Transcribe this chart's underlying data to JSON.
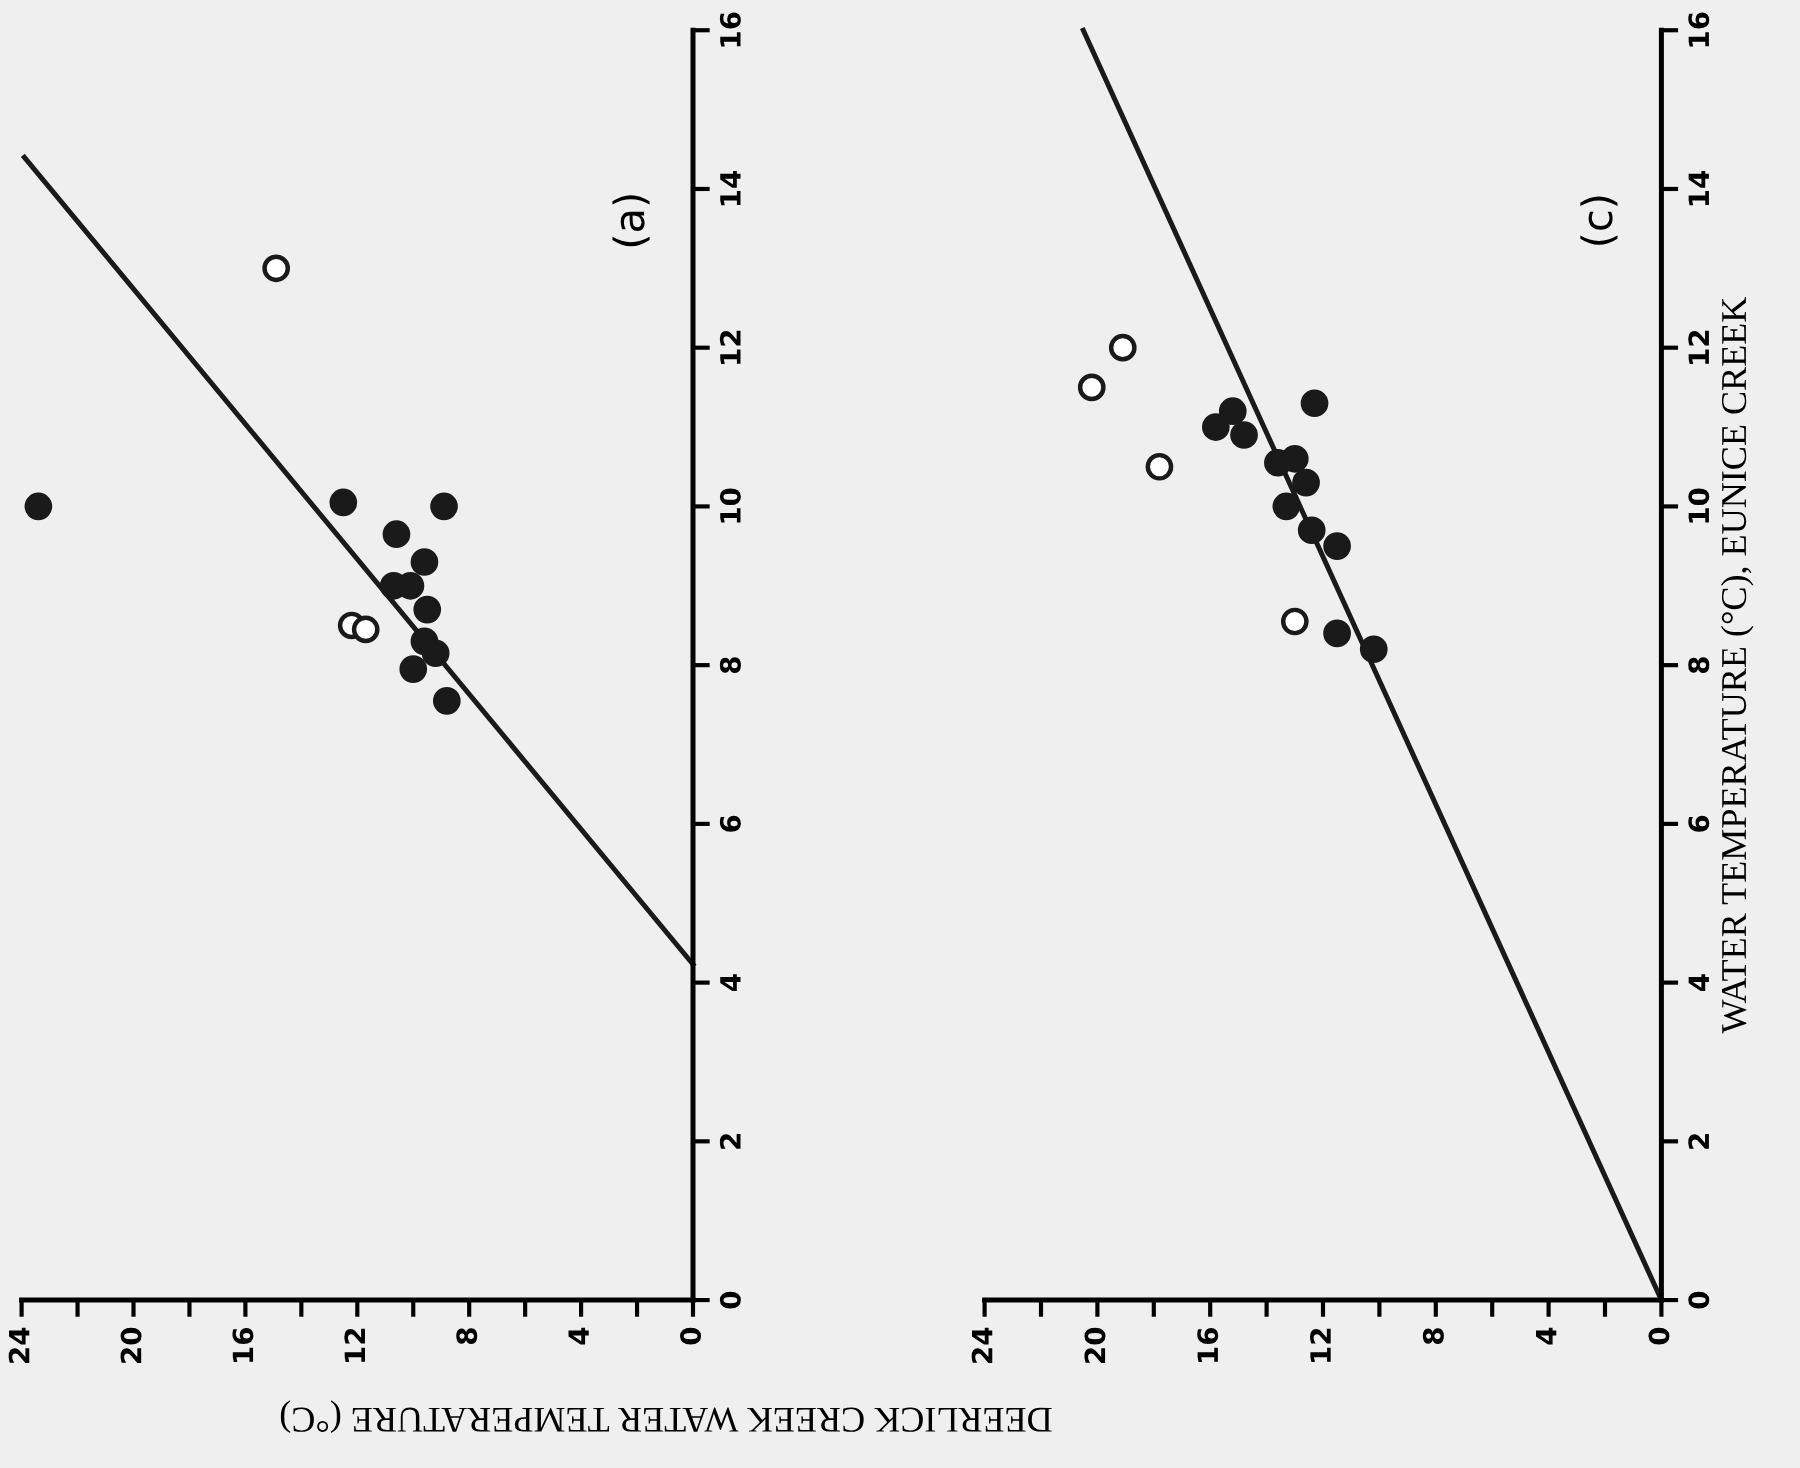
{
  "chart_data": [
    {
      "type": "scatter",
      "title": "(a)",
      "xlabel": "DEERLICK CREEK WATER TEMPERATURE (°C)",
      "xlim": [
        24,
        0
      ],
      "ylim": [
        0,
        16
      ],
      "xticks": [
        0,
        {
          "value": 2,
          "label": null
        },
        4,
        {
          "value": 6,
          "label": null
        },
        8,
        {
          "value": 10,
          "label": null
        },
        12,
        {
          "value": 14,
          "label": null
        },
        16,
        {
          "value": 18,
          "label": null
        },
        20,
        {
          "value": 22,
          "label": null
        },
        24
      ],
      "yticks": [
        0,
        2,
        4,
        6,
        8,
        10,
        12,
        14,
        16
      ],
      "series": [
        {
          "marker": "circle",
          "color": "#1a1a1a",
          "x": [
            23.4,
            12.5,
            8.9,
            10.6,
            9.6,
            10.7,
            10.1,
            9.5,
            9.6,
            9.2,
            10.0,
            8.8
          ],
          "values": [
            10.0,
            10.05,
            10.0,
            9.65,
            9.3,
            9.0,
            9.0,
            8.7,
            8.3,
            8.15,
            7.95,
            7.55
          ]
        },
        {
          "marker": "circle",
          "color": "#ffffff",
          "x": [
            14.9,
            12.2,
            11.7
          ],
          "values": [
            13.0,
            8.5,
            8.45
          ]
        },
        {
          "type": "line",
          "color": "#1a1a1a",
          "x": [
            23.9,
            0
          ],
          "values": [
            14.4,
            4.23
          ]
        }
      ]
    },
    {
      "type": "scatter",
      "title": "(c)",
      "ylabel": "WATER TEMPERATURE (°C), EUNICE CREEK",
      "xlim": [
        24,
        0
      ],
      "ylim": [
        0,
        16
      ],
      "xticks": [
        0,
        {
          "value": 2,
          "label": null
        },
        4,
        {
          "value": 6,
          "label": null
        },
        8,
        {
          "value": 10,
          "label": null
        },
        12,
        {
          "value": 14,
          "label": null
        },
        16,
        {
          "value": 18,
          "label": null
        },
        20,
        {
          "value": 22,
          "label": null
        },
        24
      ],
      "yticks": [
        0,
        2,
        4,
        6,
        8,
        10,
        12,
        14,
        16
      ],
      "series": [
        {
          "marker": "circle",
          "color": "#1a1a1a",
          "x": [
            12.3,
            15.2,
            15.8,
            14.8,
            13.0,
            13.6,
            12.6,
            13.3,
            12.4,
            11.5,
            11.5,
            10.2
          ],
          "values": [
            11.3,
            11.2,
            11.0,
            10.9,
            10.6,
            10.55,
            10.3,
            10.0,
            9.7,
            9.5,
            8.4,
            8.2
          ]
        },
        {
          "marker": "circle",
          "color": "#ffffff",
          "x": [
            19.1,
            20.2,
            17.8,
            13.0
          ],
          "values": [
            12.0,
            11.5,
            10.5,
            8.55
          ]
        },
        {
          "type": "line",
          "color": "#1a1a1a",
          "x": [
            20.5,
            0
          ],
          "values": [
            16.0,
            0
          ]
        }
      ]
    }
  ]
}
